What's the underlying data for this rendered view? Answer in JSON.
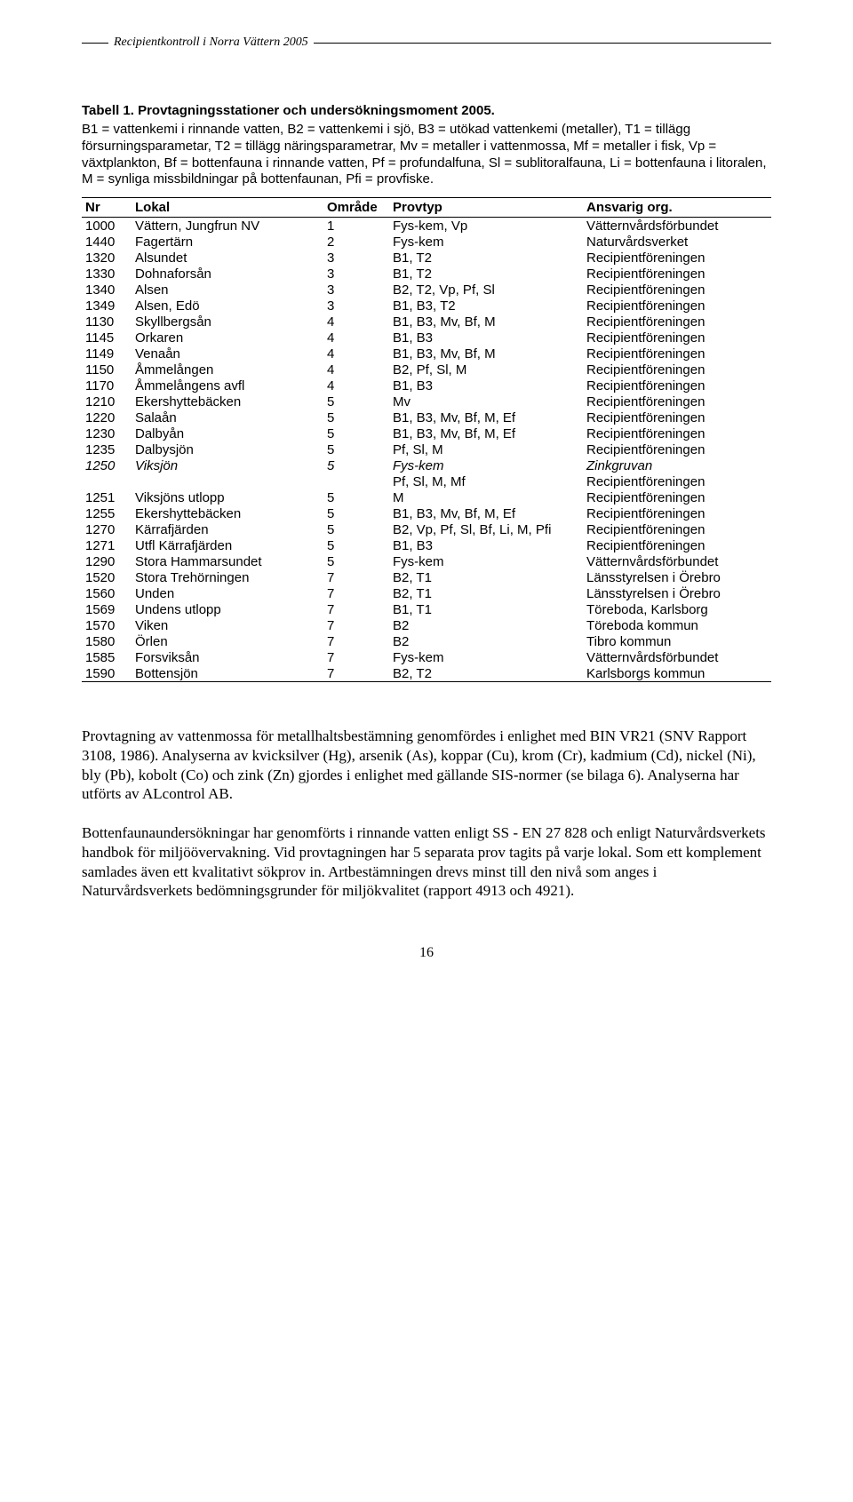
{
  "header": {
    "running_title": "Recipientkontroll i Norra Vättern 2005"
  },
  "caption": {
    "label": "Tabell 1. Provtagningsstationer och undersökningsmoment 2005.",
    "body": "B1 = vattenkemi i rinnande vatten, B2 = vattenkemi i sjö, B3 = utökad vattenkemi (metaller), T1 = tillägg försurningsparametar, T2 = tillägg näringsparametrar, Mv = metaller i vattenmossa, Mf = metaller i fisk, Vp = växtplankton, Bf = bottenfauna i rinnande vatten, Pf = profundalfuna, Sl = sublitoralfauna, Li = bottenfauna i litoralen, M = synliga missbildningar på bottenfaunan, Pfi = provfiske."
  },
  "table": {
    "headers": {
      "nr": "Nr",
      "lokal": "Lokal",
      "omrade": "Område",
      "provtyp": "Provtyp",
      "ansvarig": "Ansvarig org."
    },
    "rows": [
      {
        "nr": "1000",
        "lokal": "Vättern, Jungfrun NV",
        "omrade": "1",
        "provtyp": "Fys-kem, Vp",
        "ansvarig": "Vätternvårdsförbundet"
      },
      {
        "nr": "1440",
        "lokal": "Fagertärn",
        "omrade": "2",
        "provtyp": "Fys-kem",
        "ansvarig": "Naturvårdsverket"
      },
      {
        "nr": "1320",
        "lokal": "Alsundet",
        "omrade": "3",
        "provtyp": "B1, T2",
        "ansvarig": "Recipientföreningen"
      },
      {
        "nr": "1330",
        "lokal": "Dohnaforsån",
        "omrade": "3",
        "provtyp": "B1, T2",
        "ansvarig": "Recipientföreningen"
      },
      {
        "nr": "1340",
        "lokal": "Alsen",
        "omrade": "3",
        "provtyp": "B2, T2, Vp, Pf, Sl",
        "ansvarig": "Recipientföreningen"
      },
      {
        "nr": "1349",
        "lokal": "Alsen, Edö",
        "omrade": "3",
        "provtyp": "B1, B3, T2",
        "ansvarig": "Recipientföreningen"
      },
      {
        "nr": "1130",
        "lokal": "Skyllbergsån",
        "omrade": "4",
        "provtyp": "B1, B3, Mv, Bf, M",
        "ansvarig": "Recipientföreningen"
      },
      {
        "nr": "1145",
        "lokal": "Orkaren",
        "omrade": "4",
        "provtyp": "B1, B3",
        "ansvarig": "Recipientföreningen"
      },
      {
        "nr": "1149",
        "lokal": "Venaån",
        "omrade": "4",
        "provtyp": "B1, B3, Mv, Bf, M",
        "ansvarig": "Recipientföreningen"
      },
      {
        "nr": "1150",
        "lokal": "Åmmelången",
        "omrade": "4",
        "provtyp": "B2, Pf, Sl, M",
        "ansvarig": "Recipientföreningen"
      },
      {
        "nr": "1170",
        "lokal": "Åmmelångens avfl",
        "omrade": "4",
        "provtyp": "B1, B3",
        "ansvarig": "Recipientföreningen"
      },
      {
        "nr": "1210",
        "lokal": "Ekershyttebäcken",
        "omrade": "5",
        "provtyp": "Mv",
        "ansvarig": "Recipientföreningen"
      },
      {
        "nr": "1220",
        "lokal": "Salaån",
        "omrade": "5",
        "provtyp": "B1, B3, Mv, Bf, M, Ef",
        "ansvarig": "Recipientföreningen"
      },
      {
        "nr": "1230",
        "lokal": "Dalbyån",
        "omrade": "5",
        "provtyp": "B1, B3, Mv, Bf, M, Ef",
        "ansvarig": "Recipientföreningen"
      },
      {
        "nr": "1235",
        "lokal": "Dalbysjön",
        "omrade": "5",
        "provtyp": "Pf, Sl, M",
        "ansvarig": "Recipientföreningen"
      },
      {
        "nr": "1250",
        "lokal": "Viksjön",
        "omrade": "5",
        "provtyp": "Fys-kem",
        "ansvarig": "Zinkgruvan",
        "italic": true
      },
      {
        "nr": "",
        "lokal": "",
        "omrade": "",
        "provtyp": "Pf, Sl, M, Mf",
        "ansvarig": "Recipientföreningen"
      },
      {
        "nr": "1251",
        "lokal": "Viksjöns utlopp",
        "omrade": "5",
        "provtyp": "M",
        "ansvarig": "Recipientföreningen"
      },
      {
        "nr": "1255",
        "lokal": "Ekershyttebäcken",
        "omrade": "5",
        "provtyp": "B1, B3, Mv, Bf, M, Ef",
        "ansvarig": "Recipientföreningen"
      },
      {
        "nr": "1270",
        "lokal": "Kärrafjärden",
        "omrade": "5",
        "provtyp": "B2, Vp, Pf, Sl, Bf, Li, M, Pfi",
        "ansvarig": "Recipientföreningen"
      },
      {
        "nr": "1271",
        "lokal": "Utfl Kärrafjärden",
        "omrade": "5",
        "provtyp": "B1, B3",
        "ansvarig": "Recipientföreningen"
      },
      {
        "nr": "1290",
        "lokal": "Stora Hammarsundet",
        "omrade": "5",
        "provtyp": "Fys-kem",
        "ansvarig": "Vätternvårdsförbundet"
      },
      {
        "nr": "1520",
        "lokal": "Stora Trehörningen",
        "omrade": "7",
        "provtyp": "B2, T1",
        "ansvarig": "Länsstyrelsen i Örebro"
      },
      {
        "nr": "1560",
        "lokal": "Unden",
        "omrade": "7",
        "provtyp": "B2, T1",
        "ansvarig": "Länsstyrelsen i Örebro"
      },
      {
        "nr": "1569",
        "lokal": "Undens utlopp",
        "omrade": "7",
        "provtyp": "B1, T1",
        "ansvarig": "Töreboda, Karlsborg"
      },
      {
        "nr": "1570",
        "lokal": "Viken",
        "omrade": "7",
        "provtyp": "B2",
        "ansvarig": "Töreboda kommun"
      },
      {
        "nr": "1580",
        "lokal": "Örlen",
        "omrade": "7",
        "provtyp": "B2",
        "ansvarig": "Tibro kommun"
      },
      {
        "nr": "1585",
        "lokal": "Forsviksån",
        "omrade": "7",
        "provtyp": "Fys-kem",
        "ansvarig": "Vätternvårdsförbundet"
      },
      {
        "nr": "1590",
        "lokal": "Bottensjön",
        "omrade": "7",
        "provtyp": "B2, T2",
        "ansvarig": "Karlsborgs kommun"
      }
    ]
  },
  "paragraphs": {
    "p1": "Provtagning av vattenmossa för metallhaltsbestämning genomfördes i enlighet med BIN VR21 (SNV Rapport 3108, 1986). Analyserna av kvicksilver (Hg), arsenik (As), koppar (Cu), krom (Cr), kadmium (Cd), nickel (Ni), bly (Pb), kobolt (Co) och zink (Zn) gjordes i enlighet med gällande SIS-normer (se bilaga 6). Analyserna har utförts av ALcontrol AB.",
    "p2": "Bottenfaunaundersökningar har genomförts i rinnande vatten enligt SS - EN 27 828 och enligt Naturvårdsverkets handbok för miljöövervakning. Vid provtagningen har 5 separata prov tagits på varje lokal. Som ett komplement samlades även ett kvalitativt sökprov in. Artbestämningen drevs minst till den nivå som anges i Naturvårdsverkets bedömningsgrunder för miljökvalitet (rapport 4913 och 4921)."
  },
  "footer": {
    "page_number": "16"
  }
}
